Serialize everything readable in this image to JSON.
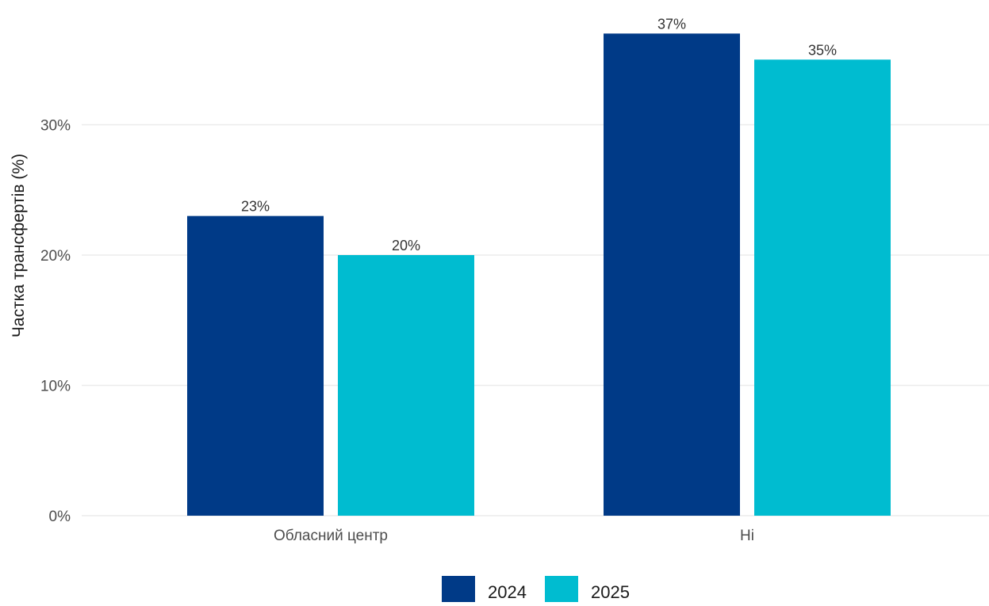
{
  "chart_data": {
    "type": "bar",
    "categories": [
      "Обласний центр",
      "Ні"
    ],
    "series": [
      {
        "name": "2024",
        "values": [
          23,
          37
        ],
        "labels": [
          "23%",
          "37%"
        ],
        "color": "#003a87"
      },
      {
        "name": "2025",
        "values": [
          20,
          35
        ],
        "labels": [
          "20%",
          "35%"
        ],
        "color": "#00bcd0"
      }
    ],
    "ylabel": "Частка трансфертів (%)",
    "xlabel": "",
    "ylim": [
      0,
      38
    ],
    "yticks": [
      {
        "value": 0,
        "label": "0%"
      },
      {
        "value": 10,
        "label": "10%"
      },
      {
        "value": 20,
        "label": "20%"
      },
      {
        "value": 30,
        "label": "30%"
      }
    ],
    "grid": "horizontal",
    "legend_position": "bottom"
  }
}
